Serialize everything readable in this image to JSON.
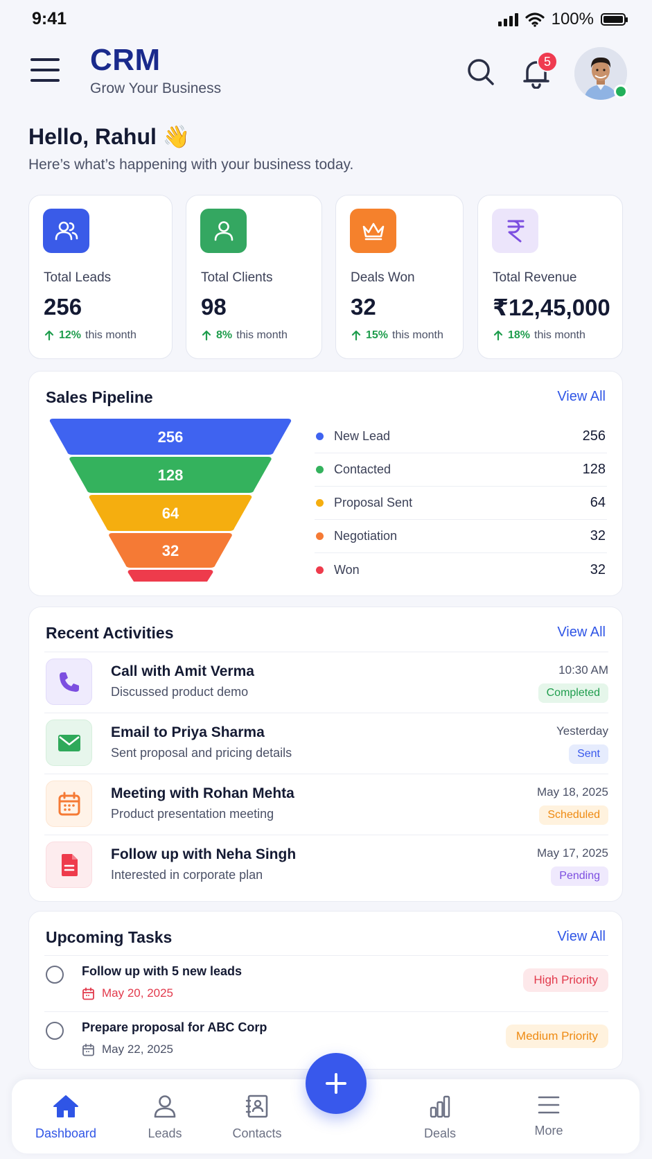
{
  "status_bar": {
    "time": "9:41",
    "battery": "100%"
  },
  "header": {
    "title": "CRM",
    "subtitle": "Grow Your Business",
    "notification_count": "5"
  },
  "greeting": {
    "title": "Hello, Rahul 👋",
    "subtitle": "Here’s what’s happening with your business today."
  },
  "stats": [
    {
      "label": "Total Leads",
      "value": "256",
      "change": "12%",
      "period": "this month",
      "icon": "users-icon",
      "color": "#3a5be8"
    },
    {
      "label": "Total Clients",
      "value": "98",
      "change": "8%",
      "period": "this month",
      "icon": "user-icon",
      "color": "#34a761"
    },
    {
      "label": "Deals Won",
      "value": "32",
      "change": "15%",
      "period": "this month",
      "icon": "crown-icon",
      "color": "#f5812c"
    },
    {
      "label": "Total Revenue",
      "value": "₹12,45,000",
      "change": "18%",
      "period": "this month",
      "icon": "rupee-icon",
      "color": "#7c4ee0"
    }
  ],
  "pipeline": {
    "title": "Sales Pipeline",
    "view_all": "View All",
    "chart_data": {
      "type": "funnel",
      "categories": [
        "New Lead",
        "Contacted",
        "Proposal Sent",
        "Negotiation",
        "Won"
      ],
      "values": [
        256,
        128,
        64,
        32,
        32
      ],
      "colors": [
        "#3f63f0",
        "#34b25d",
        "#f5ae0f",
        "#f57a35",
        "#ee3b4c"
      ]
    }
  },
  "activities": {
    "title": "Recent Activities",
    "view_all": "View All",
    "items": [
      {
        "title": "Call with Amit Verma",
        "desc": "Discussed product demo",
        "time": "10:30 AM",
        "status": "Completed",
        "icon": "phone-icon"
      },
      {
        "title": "Email to Priya Sharma",
        "desc": "Sent proposal and pricing details",
        "time": "Yesterday",
        "status": "Sent",
        "icon": "mail-icon"
      },
      {
        "title": "Meeting with Rohan Mehta",
        "desc": "Product presentation meeting",
        "time": "May 18, 2025",
        "status": "Scheduled",
        "icon": "calendar-icon"
      },
      {
        "title": "Follow up with Neha Singh",
        "desc": "Interested in corporate plan",
        "time": "May 17, 2025",
        "status": "Pending",
        "icon": "document-icon"
      }
    ]
  },
  "tasks": {
    "title": "Upcoming Tasks",
    "view_all": "View All",
    "items": [
      {
        "title": "Follow up with 5 new leads",
        "date": "May 20, 2025",
        "priority": "High Priority"
      },
      {
        "title": "Prepare proposal for ABC Corp",
        "date": "May 22, 2025",
        "priority": "Medium Priority"
      }
    ]
  },
  "nav": {
    "items": [
      {
        "label": "Dashboard",
        "icon": "home-icon"
      },
      {
        "label": "Leads",
        "icon": "user-icon"
      },
      {
        "label": "Contacts",
        "icon": "contact-book-icon"
      },
      {
        "label": "Deals",
        "icon": "bar-chart-icon"
      },
      {
        "label": "More",
        "icon": "menu-icon"
      }
    ],
    "fab_icon": "plus-icon"
  }
}
